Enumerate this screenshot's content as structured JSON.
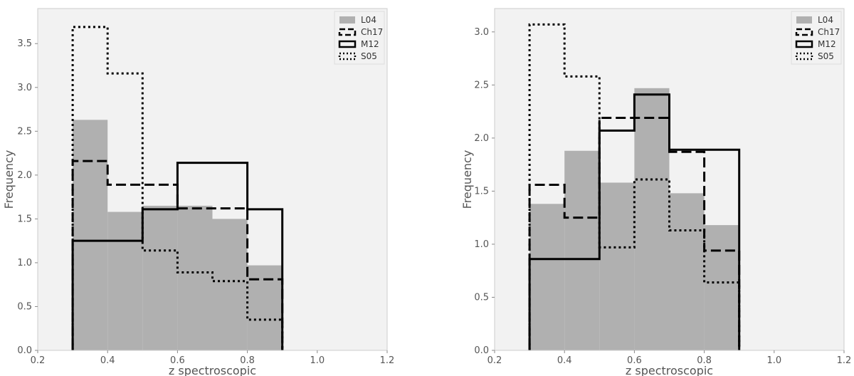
{
  "chart_data": [
    {
      "type": "bar",
      "xlabel": "z spectroscopic",
      "ylabel": "Frequency",
      "xlim": [
        0.2,
        1.2
      ],
      "ylim": [
        0.0,
        3.9
      ],
      "xticks": [
        "0.2",
        "0.4",
        "0.6",
        "0.8",
        "1.0",
        "1.2"
      ],
      "yticks": [
        "0.0",
        "0.5",
        "1.0",
        "1.5",
        "2.0",
        "2.5",
        "3.0",
        "3.5"
      ],
      "bin_edges": [
        0.3,
        0.4,
        0.5,
        0.6,
        0.7,
        0.8,
        0.9
      ],
      "grid": false,
      "legend_position": "top-right",
      "series": [
        {
          "name": "L04",
          "style": "filled",
          "color": "#b0b0b0",
          "values": [
            2.63,
            1.58,
            1.65,
            1.65,
            1.5,
            0.97
          ]
        },
        {
          "name": "Ch17",
          "style": "dashed",
          "color": "#000000",
          "values": [
            2.16,
            1.89,
            1.89,
            1.62,
            1.62,
            0.81
          ]
        },
        {
          "name": "M12",
          "style": "solid",
          "color": "#000000",
          "values": [
            1.25,
            1.25,
            1.61,
            2.14,
            2.14,
            1.61
          ]
        },
        {
          "name": "S05",
          "style": "dotted",
          "color": "#000000",
          "values": [
            3.69,
            3.16,
            1.14,
            0.89,
            0.79,
            0.35
          ]
        }
      ]
    },
    {
      "type": "bar",
      "xlabel": "z spectroscopic",
      "ylabel": "Frequency",
      "xlim": [
        0.2,
        1.2
      ],
      "ylim": [
        0.0,
        3.22
      ],
      "xticks": [
        "0.2",
        "0.4",
        "0.6",
        "0.8",
        "1.0",
        "1.2"
      ],
      "yticks": [
        "0.0",
        "0.5",
        "1.0",
        "1.5",
        "2.0",
        "2.5",
        "3.0"
      ],
      "bin_edges": [
        0.3,
        0.4,
        0.5,
        0.6,
        0.7,
        0.8,
        0.9
      ],
      "grid": false,
      "legend_position": "top-right",
      "series": [
        {
          "name": "L04",
          "style": "filled",
          "color": "#b0b0b0",
          "values": [
            1.38,
            1.88,
            1.58,
            2.47,
            1.48,
            1.18
          ]
        },
        {
          "name": "Ch17",
          "style": "dashed",
          "color": "#000000",
          "values": [
            1.56,
            1.25,
            2.19,
            2.19,
            1.87,
            0.94
          ]
        },
        {
          "name": "M12",
          "style": "solid",
          "color": "#000000",
          "values": [
            0.86,
            0.86,
            2.07,
            2.41,
            1.89,
            1.89
          ]
        },
        {
          "name": "S05",
          "style": "dotted",
          "color": "#000000",
          "values": [
            3.07,
            2.58,
            0.97,
            1.61,
            1.13,
            0.64
          ]
        }
      ]
    }
  ]
}
